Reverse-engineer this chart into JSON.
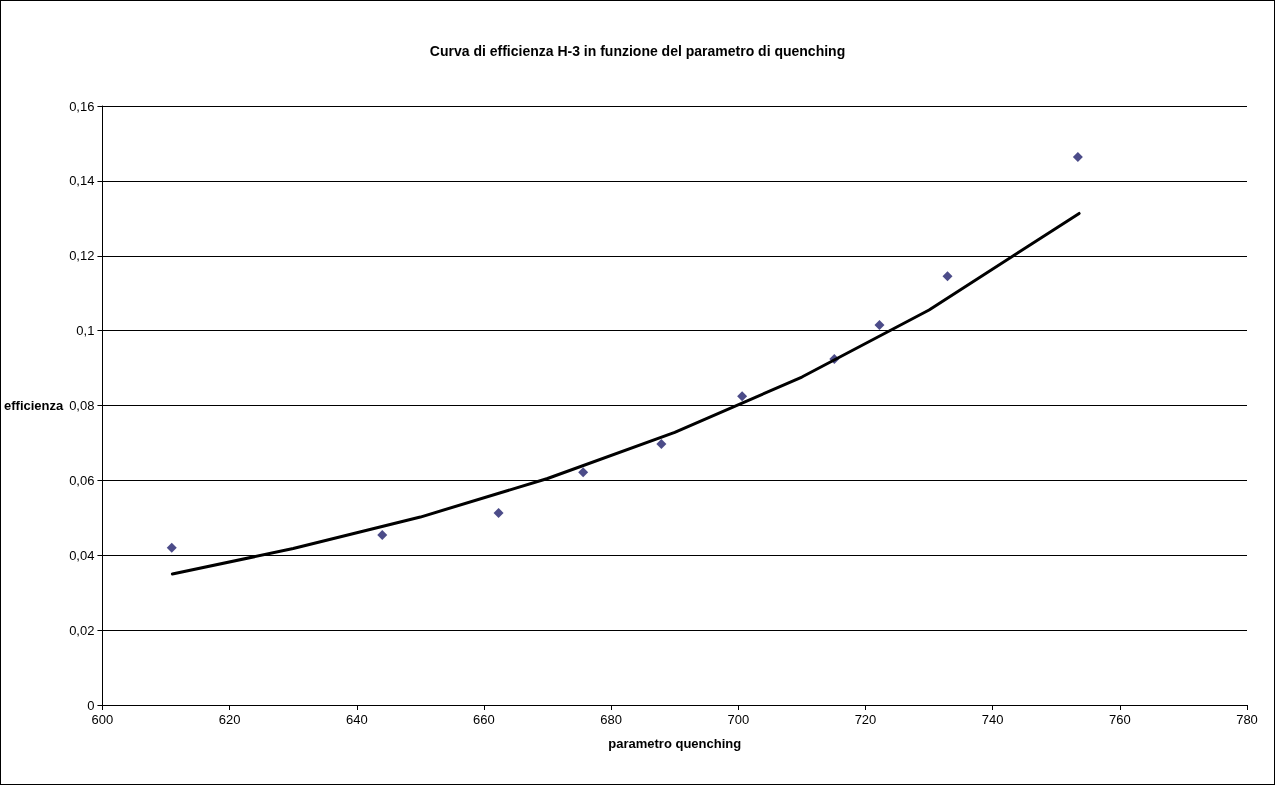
{
  "chart_data": {
    "type": "scatter",
    "title": "Curva di efficienza H-3 in funzione del parametro di quenching",
    "xlabel": "parametro quenching",
    "ylabel": "efficienza",
    "xlim": [
      600,
      780
    ],
    "xticks": [
      600,
      620,
      640,
      660,
      680,
      700,
      720,
      740,
      760,
      780
    ],
    "ylim": [
      0,
      0.16
    ],
    "yticks": [
      0,
      {
        "value": 0.02,
        "label": "0,02"
      },
      {
        "value": 0.04,
        "label": "0,04"
      },
      {
        "value": 0.06,
        "label": "0,06"
      },
      {
        "value": 0.08,
        "label": "0,08"
      },
      {
        "value": 0.1,
        "label": "0,1"
      },
      {
        "value": 0.12,
        "label": "0,12"
      },
      {
        "value": 0.14,
        "label": "0,14"
      },
      {
        "value": 0.16,
        "label": "0,16"
      }
    ],
    "grid": "y",
    "series": [
      {
        "type": "scatter",
        "color": "#1f1f6b",
        "marker": "diamond",
        "x": [
          610.9,
          644.0,
          662.3,
          675.6,
          687.9,
          700.6,
          715.1,
          722.2,
          732.9,
          753.4
        ],
        "values": [
          0.042,
          0.0454,
          0.0513,
          0.0622,
          0.0697,
          0.0825,
          0.0924,
          0.1015,
          0.1145,
          0.1464
        ]
      },
      {
        "type": "line",
        "color": "#000000",
        "marker": "none",
        "line_style": "solid",
        "x": [
          611,
          630,
          650,
          670,
          690,
          710,
          730,
          753.6
        ],
        "values": [
          0.035,
          0.0418,
          0.0502,
          0.0605,
          0.0728,
          0.0876,
          0.1055,
          0.1313
        ]
      }
    ]
  }
}
